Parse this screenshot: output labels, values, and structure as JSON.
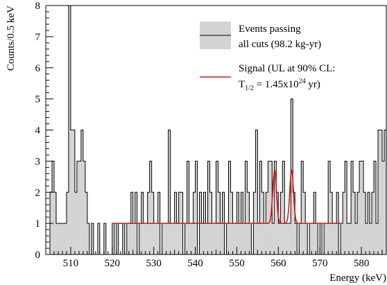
{
  "chart_data": {
    "type": "histogram",
    "xlabel": "Energy (keV)",
    "ylabel": "Counts/0.5 keV",
    "xlim": [
      504,
      586
    ],
    "ylim": [
      0,
      8
    ],
    "bin_width": 0.5,
    "x_ticks": [
      510,
      520,
      530,
      540,
      550,
      560,
      570,
      580
    ],
    "y_ticks": [
      0,
      1,
      2,
      3,
      4,
      5,
      6,
      7,
      8
    ],
    "legend": {
      "position": "top-right",
      "events_line1": "Events passing",
      "events_line2": "all cuts (98.2 kg-yr)",
      "signal_line1": "Signal (UL at 90% CL:",
      "signal_line2_prefix": "T",
      "signal_line2_sub": "1/2",
      "signal_line2_mid": " = 1.45x10",
      "signal_line2_sup": "24",
      "signal_line2_suffix": " yr)"
    },
    "series": [
      {
        "name": "Events passing all cuts (98.2 kg-yr)",
        "kind": "histogram",
        "fill_color": "#d3d3d3",
        "line_color": "#000000",
        "bins_start": 504,
        "counts": [
          0,
          0,
          2,
          3,
          2,
          1,
          1,
          1,
          1,
          1,
          2,
          8,
          4,
          4,
          2,
          3,
          3,
          4,
          3,
          2,
          1,
          0,
          1,
          0,
          0,
          1,
          0,
          0,
          1,
          0,
          0,
          0,
          1,
          0,
          1,
          0,
          0,
          1,
          0,
          1,
          1,
          2,
          1,
          2,
          0,
          1,
          2,
          1,
          1,
          2,
          3,
          2,
          1,
          1,
          2,
          0,
          1,
          1,
          1,
          4,
          1,
          1,
          2,
          1,
          2,
          2,
          0,
          1,
          3,
          1,
          1,
          2,
          3,
          0,
          2,
          1,
          2,
          1,
          3,
          2,
          1,
          1,
          3,
          2,
          1,
          2,
          0,
          1,
          3,
          2,
          1,
          1,
          2,
          1,
          2,
          1,
          3,
          2,
          1,
          0,
          2,
          4,
          1,
          3,
          2,
          1,
          2,
          3,
          3,
          1,
          3,
          2,
          1,
          2,
          3,
          1,
          1,
          1,
          5,
          2,
          1,
          0,
          1,
          3,
          2,
          1,
          0,
          1,
          1,
          2,
          1,
          0,
          1,
          0,
          1,
          1,
          3,
          2,
          1,
          1,
          2,
          0,
          1,
          2,
          3,
          1,
          1,
          3,
          2,
          1,
          2,
          3,
          3,
          2,
          1,
          2,
          1,
          2,
          3,
          1,
          4,
          4,
          3,
          4
        ]
      },
      {
        "name": "Signal (UL at 90% CL: T1/2 = 1.45x10^24 yr)",
        "kind": "curve",
        "color": "#dd1111",
        "x_range": [
          520,
          575
        ],
        "baseline": 1.0,
        "peaks": [
          {
            "center": 559.1,
            "height": 1.7,
            "sigma": 0.45
          },
          {
            "center": 563.2,
            "height": 1.7,
            "sigma": 0.45
          }
        ]
      }
    ]
  }
}
